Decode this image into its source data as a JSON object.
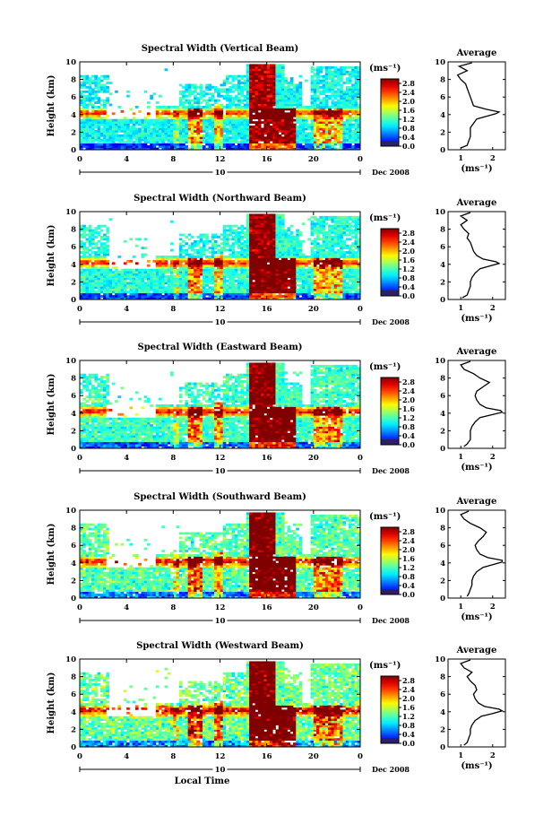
{
  "chart_data": [
    {
      "type": "heatmap",
      "title": "Spectral Width (Vertical Beam)",
      "ylabel": "Height (km)",
      "ylim": [
        0,
        10
      ],
      "x_ticks": [
        "0",
        "4",
        "8",
        "12",
        "16",
        "20",
        "0"
      ],
      "date_label": "10",
      "date_suffix": "Dec 2008",
      "colorbar": {
        "unit": "(ms⁻¹)",
        "ticks": [
          "2.8",
          "2.4",
          "2.0",
          "1.6",
          "1.2",
          "0.8",
          "0.4",
          "0.0"
        ],
        "range": [
          0,
          3.0
        ]
      },
      "average": {
        "title": "Average",
        "xlabel": "(ms⁻¹)",
        "xticks": [
          "1",
          "2"
        ],
        "xlim": [
          0.6,
          2.4
        ],
        "ylim": [
          0,
          10
        ],
        "yticks": [
          "0",
          "2",
          "4",
          "6",
          "8",
          "10"
        ],
        "height": [
          0.2,
          0.5,
          1.0,
          1.5,
          2.0,
          2.5,
          3.0,
          3.5,
          3.8,
          4.1,
          4.3,
          4.6,
          5.0,
          5.5,
          6.0,
          6.5,
          7.0,
          7.5,
          8.0,
          8.5,
          9.0,
          9.5,
          9.9
        ],
        "width": [
          1.0,
          1.2,
          1.25,
          1.3,
          1.3,
          1.3,
          1.4,
          1.5,
          1.8,
          2.1,
          2.2,
          1.8,
          1.4,
          1.35,
          1.3,
          1.25,
          1.2,
          1.15,
          1.0,
          0.9,
          1.2,
          0.95,
          1.35
        ]
      }
    },
    {
      "type": "heatmap",
      "title": "Spectral Width (Northward Beam)",
      "ylabel": "Height (km)",
      "ylim": [
        0,
        10
      ],
      "x_ticks": [
        "0",
        "4",
        "8",
        "12",
        "16",
        "20",
        "0"
      ],
      "date_label": "10",
      "date_suffix": "Dec 2008",
      "colorbar": {
        "unit": "(ms⁻¹)",
        "ticks": [
          "2.8",
          "2.4",
          "2.0",
          "1.6",
          "1.2",
          "0.8",
          "0.4",
          "0.0"
        ],
        "range": [
          0,
          3.0
        ]
      },
      "average": {
        "title": "Average",
        "xlabel": "(ms⁻¹)",
        "xticks": [
          "1",
          "2"
        ],
        "xlim": [
          0.6,
          2.4
        ],
        "ylim": [
          0,
          10
        ],
        "yticks": [
          "0",
          "2",
          "4",
          "6",
          "8",
          "10"
        ],
        "height": [
          0.2,
          0.5,
          1.0,
          1.5,
          2.0,
          2.5,
          3.0,
          3.5,
          3.8,
          4.1,
          4.3,
          4.6,
          5.0,
          5.5,
          6.0,
          6.5,
          7.0,
          7.5,
          8.0,
          8.5,
          9.0,
          9.5,
          9.9
        ],
        "width": [
          1.05,
          1.2,
          1.25,
          1.3,
          1.3,
          1.35,
          1.45,
          1.6,
          1.9,
          2.2,
          2.1,
          1.7,
          1.5,
          1.4,
          1.35,
          1.3,
          1.2,
          1.25,
          1.1,
          1.0,
          1.2,
          1.0,
          1.3
        ]
      }
    },
    {
      "type": "heatmap",
      "title": "Spectral Width (Eastward Beam)",
      "ylabel": "Height (km)",
      "ylim": [
        0,
        10
      ],
      "x_ticks": [
        "0",
        "4",
        "8",
        "12",
        "16",
        "20",
        "0"
      ],
      "date_label": "10",
      "date_suffix": "Dec 2008",
      "colorbar": {
        "unit": "(ms⁻¹)",
        "ticks": [
          "2.8",
          "2.4",
          "2.0",
          "1.6",
          "1.2",
          "0.8",
          "0.4",
          "0.0"
        ],
        "range": [
          0,
          3.0
        ]
      },
      "average": {
        "title": "Average",
        "xlabel": "(ms⁻¹)",
        "xticks": [
          "1",
          "2"
        ],
        "xlim": [
          0.6,
          2.4
        ],
        "ylim": [
          0,
          10
        ],
        "yticks": [
          "0",
          "2",
          "4",
          "6",
          "8",
          "10"
        ],
        "height": [
          0.2,
          0.5,
          1.0,
          1.5,
          2.0,
          2.5,
          3.0,
          3.5,
          3.8,
          4.1,
          4.3,
          4.6,
          5.0,
          5.5,
          6.0,
          6.5,
          7.0,
          7.5,
          8.0,
          8.5,
          9.0,
          9.5,
          9.9
        ],
        "width": [
          1.1,
          1.2,
          1.3,
          1.3,
          1.3,
          1.35,
          1.45,
          1.6,
          1.95,
          2.3,
          2.25,
          1.8,
          1.6,
          1.5,
          1.45,
          1.5,
          1.7,
          1.9,
          1.6,
          1.4,
          1.1,
          1.0,
          1.3
        ]
      }
    },
    {
      "type": "heatmap",
      "title": "Spectral Width (Southward Beam)",
      "ylabel": "Height (km)",
      "ylim": [
        0,
        10
      ],
      "x_ticks": [
        "0",
        "4",
        "8",
        "12",
        "16",
        "20",
        "0"
      ],
      "date_label": "10",
      "date_suffix": "Dec 2008",
      "colorbar": {
        "unit": "(ms⁻¹)",
        "ticks": [
          "2.8",
          "2.4",
          "2.0",
          "1.6",
          "1.2",
          "0.8",
          "0.4",
          "0.0"
        ],
        "range": [
          0,
          3.0
        ]
      },
      "average": {
        "title": "Average",
        "xlabel": "(ms⁻¹)",
        "xticks": [
          "1",
          "2"
        ],
        "xlim": [
          0.6,
          2.4
        ],
        "ylim": [
          0,
          10
        ],
        "yticks": [
          "0",
          "2",
          "4",
          "6",
          "8",
          "10"
        ],
        "height": [
          0.2,
          0.5,
          1.0,
          1.5,
          2.0,
          2.5,
          3.0,
          3.5,
          3.8,
          4.1,
          4.3,
          4.6,
          5.0,
          5.5,
          6.0,
          6.5,
          7.0,
          7.5,
          8.0,
          8.5,
          9.0,
          9.5,
          9.9
        ],
        "width": [
          1.2,
          1.25,
          1.3,
          1.35,
          1.35,
          1.4,
          1.5,
          1.7,
          2.0,
          2.3,
          2.3,
          1.85,
          1.6,
          1.5,
          1.45,
          1.55,
          1.7,
          1.8,
          1.6,
          1.3,
          1.1,
          1.0,
          1.25
        ]
      }
    },
    {
      "type": "heatmap",
      "title": "Spectral Width (Westward Beam)",
      "ylabel": "Height (km)",
      "xlabel": "Local Time",
      "ylim": [
        0,
        10
      ],
      "x_ticks": [
        "0",
        "4",
        "8",
        "12",
        "16",
        "20",
        "0"
      ],
      "date_label": "10",
      "date_suffix": "Dec 2008",
      "colorbar": {
        "unit": "(ms⁻¹)",
        "ticks": [
          "2.8",
          "2.4",
          "2.0",
          "1.6",
          "1.2",
          "0.8",
          "0.4",
          "0.0"
        ],
        "range": [
          0,
          3.0
        ]
      },
      "average": {
        "title": "Average",
        "xlabel": "(ms⁻¹)",
        "xticks": [
          "1",
          "2"
        ],
        "xlim": [
          0.6,
          2.4
        ],
        "ylim": [
          0,
          10
        ],
        "yticks": [
          "0",
          "2",
          "4",
          "6",
          "8",
          "10"
        ],
        "height": [
          0.2,
          0.5,
          1.0,
          1.5,
          2.0,
          2.5,
          3.0,
          3.5,
          3.8,
          4.1,
          4.3,
          4.6,
          5.0,
          5.5,
          6.0,
          6.5,
          7.0,
          7.5,
          8.0,
          8.5,
          9.0,
          9.5,
          9.9
        ],
        "width": [
          1.1,
          1.2,
          1.25,
          1.3,
          1.3,
          1.35,
          1.45,
          1.65,
          2.0,
          2.3,
          2.2,
          1.75,
          1.55,
          1.45,
          1.4,
          1.5,
          1.45,
          1.3,
          1.2,
          1.35,
          1.1,
          1.0,
          1.3
        ]
      }
    }
  ]
}
